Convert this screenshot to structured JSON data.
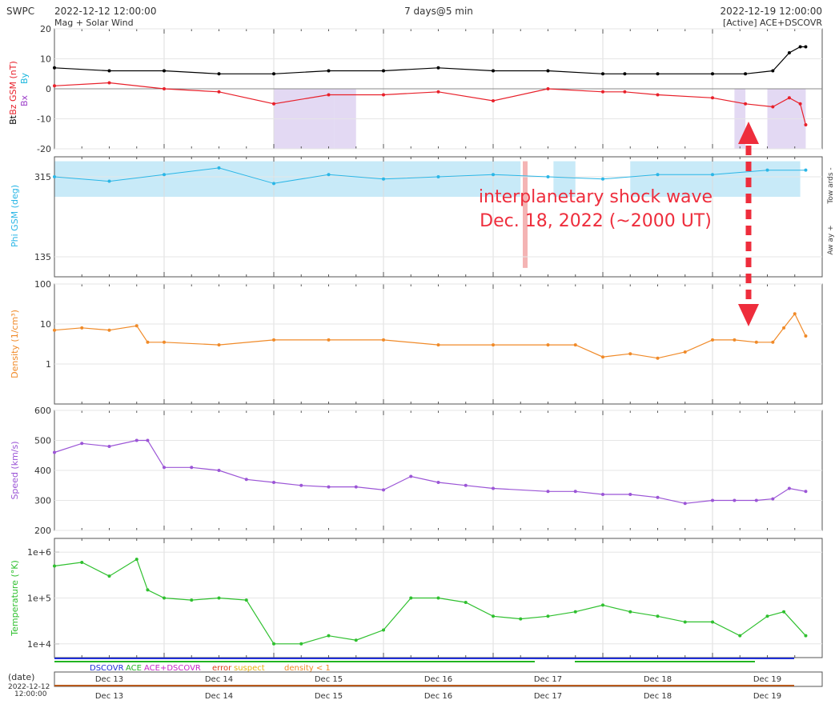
{
  "header": {
    "source": "SWPC",
    "start_time": "2022-12-12 12:00:00",
    "span": "7 days@5 min",
    "end_time": "2022-12-19 12:00:00",
    "subtitle": "Mag + Solar Wind",
    "spacecraft": "[Active] ACE+DSCOVR"
  },
  "colors": {
    "bt": "#000000",
    "bz": "#e8202a",
    "by": "#14b4dc",
    "bx": "#9b3cc8",
    "phi": "#2ab6e6",
    "phi_band": "#c8eaf8",
    "phi_away": "#f4b4b4",
    "density": "#f08a28",
    "speed": "#9b55d6",
    "temperature": "#2fc02f",
    "south_shade": "#dccff0",
    "annotation": "#ee2d3c",
    "dscovr": "#1f2fd6",
    "ace": "#22b422",
    "error": "#e0401c",
    "suspect": "#e8b010"
  },
  "annotation": {
    "line1": "interplanetary shock wave",
    "line2": "Dec. 18, 2022 (~2000 UT)"
  },
  "chart_data": [
    {
      "type": "line",
      "panel": "mag",
      "ylabel_parts": [
        "Bt",
        "Bz GSM (nT)",
        "Bx",
        "By"
      ],
      "ylim": [
        -20,
        20
      ],
      "yticks": [
        "20",
        "10",
        "0",
        "-10",
        "-20"
      ],
      "grid": true,
      "x_unit": "days since 2022-12-12 12:00 UT",
      "series": [
        {
          "name": "Bt",
          "x": [
            0,
            0.5,
            1,
            1.5,
            2,
            2.5,
            3,
            3.5,
            4,
            4.5,
            5,
            5.2,
            5.5,
            6,
            6.3,
            6.55,
            6.7,
            6.8,
            6.85
          ],
          "values": [
            7,
            6,
            6,
            5,
            5,
            6,
            6,
            7,
            6,
            6,
            5,
            5,
            5,
            5,
            5,
            6,
            12,
            14,
            14
          ]
        },
        {
          "name": "Bz GSM",
          "x": [
            0,
            0.5,
            1,
            1.5,
            2,
            2.5,
            3,
            3.5,
            4,
            4.5,
            5,
            5.2,
            5.5,
            6,
            6.3,
            6.55,
            6.7,
            6.8,
            6.85
          ],
          "values": [
            1,
            2,
            0,
            -1,
            -5,
            -2,
            -2,
            -1,
            -4,
            0,
            -1,
            -1,
            -2,
            -3,
            -5,
            -6,
            -3,
            -5,
            -12
          ]
        }
      ]
    },
    {
      "type": "scatter",
      "panel": "phi",
      "ylabel": "Phi GSM (deg)",
      "right_labels": [
        "Tow ards -",
        "Aw ay +"
      ],
      "yticks": [
        "315",
        "135"
      ],
      "ylim": [
        90,
        360
      ],
      "grid": true,
      "series": [
        {
          "name": "Phi GSM",
          "x": [
            0,
            0.5,
            1,
            1.5,
            2,
            2.5,
            3,
            3.5,
            4,
            4.5,
            5,
            5.5,
            6,
            6.5,
            6.85
          ],
          "values": [
            315,
            305,
            320,
            335,
            300,
            320,
            310,
            315,
            320,
            315,
            310,
            320,
            320,
            330,
            330
          ]
        }
      ]
    },
    {
      "type": "line",
      "panel": "density",
      "ylabel": "Density (1/cm³)",
      "yscale": "log",
      "ylim": [
        0.1,
        100
      ],
      "yticks": [
        "100",
        "10",
        "1"
      ],
      "grid": true,
      "series": [
        {
          "name": "Density",
          "x": [
            0,
            0.25,
            0.5,
            0.75,
            0.85,
            1,
            1.5,
            2,
            2.5,
            3,
            3.5,
            4,
            4.5,
            4.75,
            5,
            5.25,
            5.5,
            5.75,
            6,
            6.2,
            6.4,
            6.55,
            6.65,
            6.75,
            6.85
          ],
          "values": [
            7,
            8,
            7,
            9,
            3.5,
            3.5,
            3,
            4,
            4,
            4,
            3,
            3,
            3,
            3,
            1.5,
            1.8,
            1.4,
            2,
            4,
            4,
            3.5,
            3.5,
            8,
            18,
            5
          ]
        }
      ]
    },
    {
      "type": "line",
      "panel": "speed",
      "ylabel": "Speed (km/s)",
      "ylim": [
        200,
        600
      ],
      "yticks": [
        "600",
        "500",
        "400",
        "300",
        "200"
      ],
      "grid": true,
      "series": [
        {
          "name": "Speed",
          "x": [
            0,
            0.25,
            0.5,
            0.75,
            0.85,
            1,
            1.25,
            1.5,
            1.75,
            2,
            2.25,
            2.5,
            2.75,
            3,
            3.25,
            3.5,
            3.75,
            4,
            4.5,
            4.75,
            5,
            5.25,
            5.5,
            5.75,
            6,
            6.2,
            6.4,
            6.55,
            6.7,
            6.85
          ],
          "values": [
            460,
            490,
            480,
            500,
            500,
            410,
            410,
            400,
            370,
            360,
            350,
            345,
            345,
            335,
            380,
            360,
            350,
            340,
            330,
            330,
            320,
            320,
            310,
            290,
            300,
            300,
            300,
            305,
            340,
            330
          ]
        }
      ]
    },
    {
      "type": "line",
      "panel": "temperature",
      "ylabel": "Temperature (°K)",
      "yscale": "log",
      "ylim": [
        5000,
        2000000
      ],
      "yticks": [
        "1e+6",
        "1e+5",
        "1e+4"
      ],
      "grid": true,
      "series": [
        {
          "name": "Temperature",
          "x": [
            0,
            0.25,
            0.5,
            0.75,
            0.85,
            1,
            1.25,
            1.5,
            1.75,
            2,
            2.25,
            2.5,
            2.75,
            3,
            3.25,
            3.5,
            3.75,
            4,
            4.25,
            4.5,
            4.75,
            5,
            5.25,
            5.5,
            5.75,
            6,
            6.25,
            6.5,
            6.65,
            6.85
          ],
          "values": [
            500000,
            600000,
            300000,
            700000,
            150000,
            100000,
            90000,
            100000,
            90000,
            10000,
            10000,
            15000,
            12000,
            20000,
            100000,
            100000,
            80000,
            40000,
            35000,
            40000,
            50000,
            70000,
            50000,
            40000,
            30000,
            30000,
            15000,
            40000,
            50000,
            15000
          ]
        }
      ]
    }
  ],
  "source_legend": {
    "items": [
      "DSCOVR",
      "ACE",
      "ACE+DSCOVR",
      "error",
      "suspect",
      "density < 1"
    ]
  },
  "axis": {
    "date_caption": "(date)",
    "start_date": "2022-12-12",
    "start_clock": "12:00:00",
    "day_labels": [
      "Dec 13",
      "Dec 14",
      "Dec 15",
      "Dec 16",
      "Dec 17",
      "Dec 18",
      "Dec 19"
    ]
  }
}
